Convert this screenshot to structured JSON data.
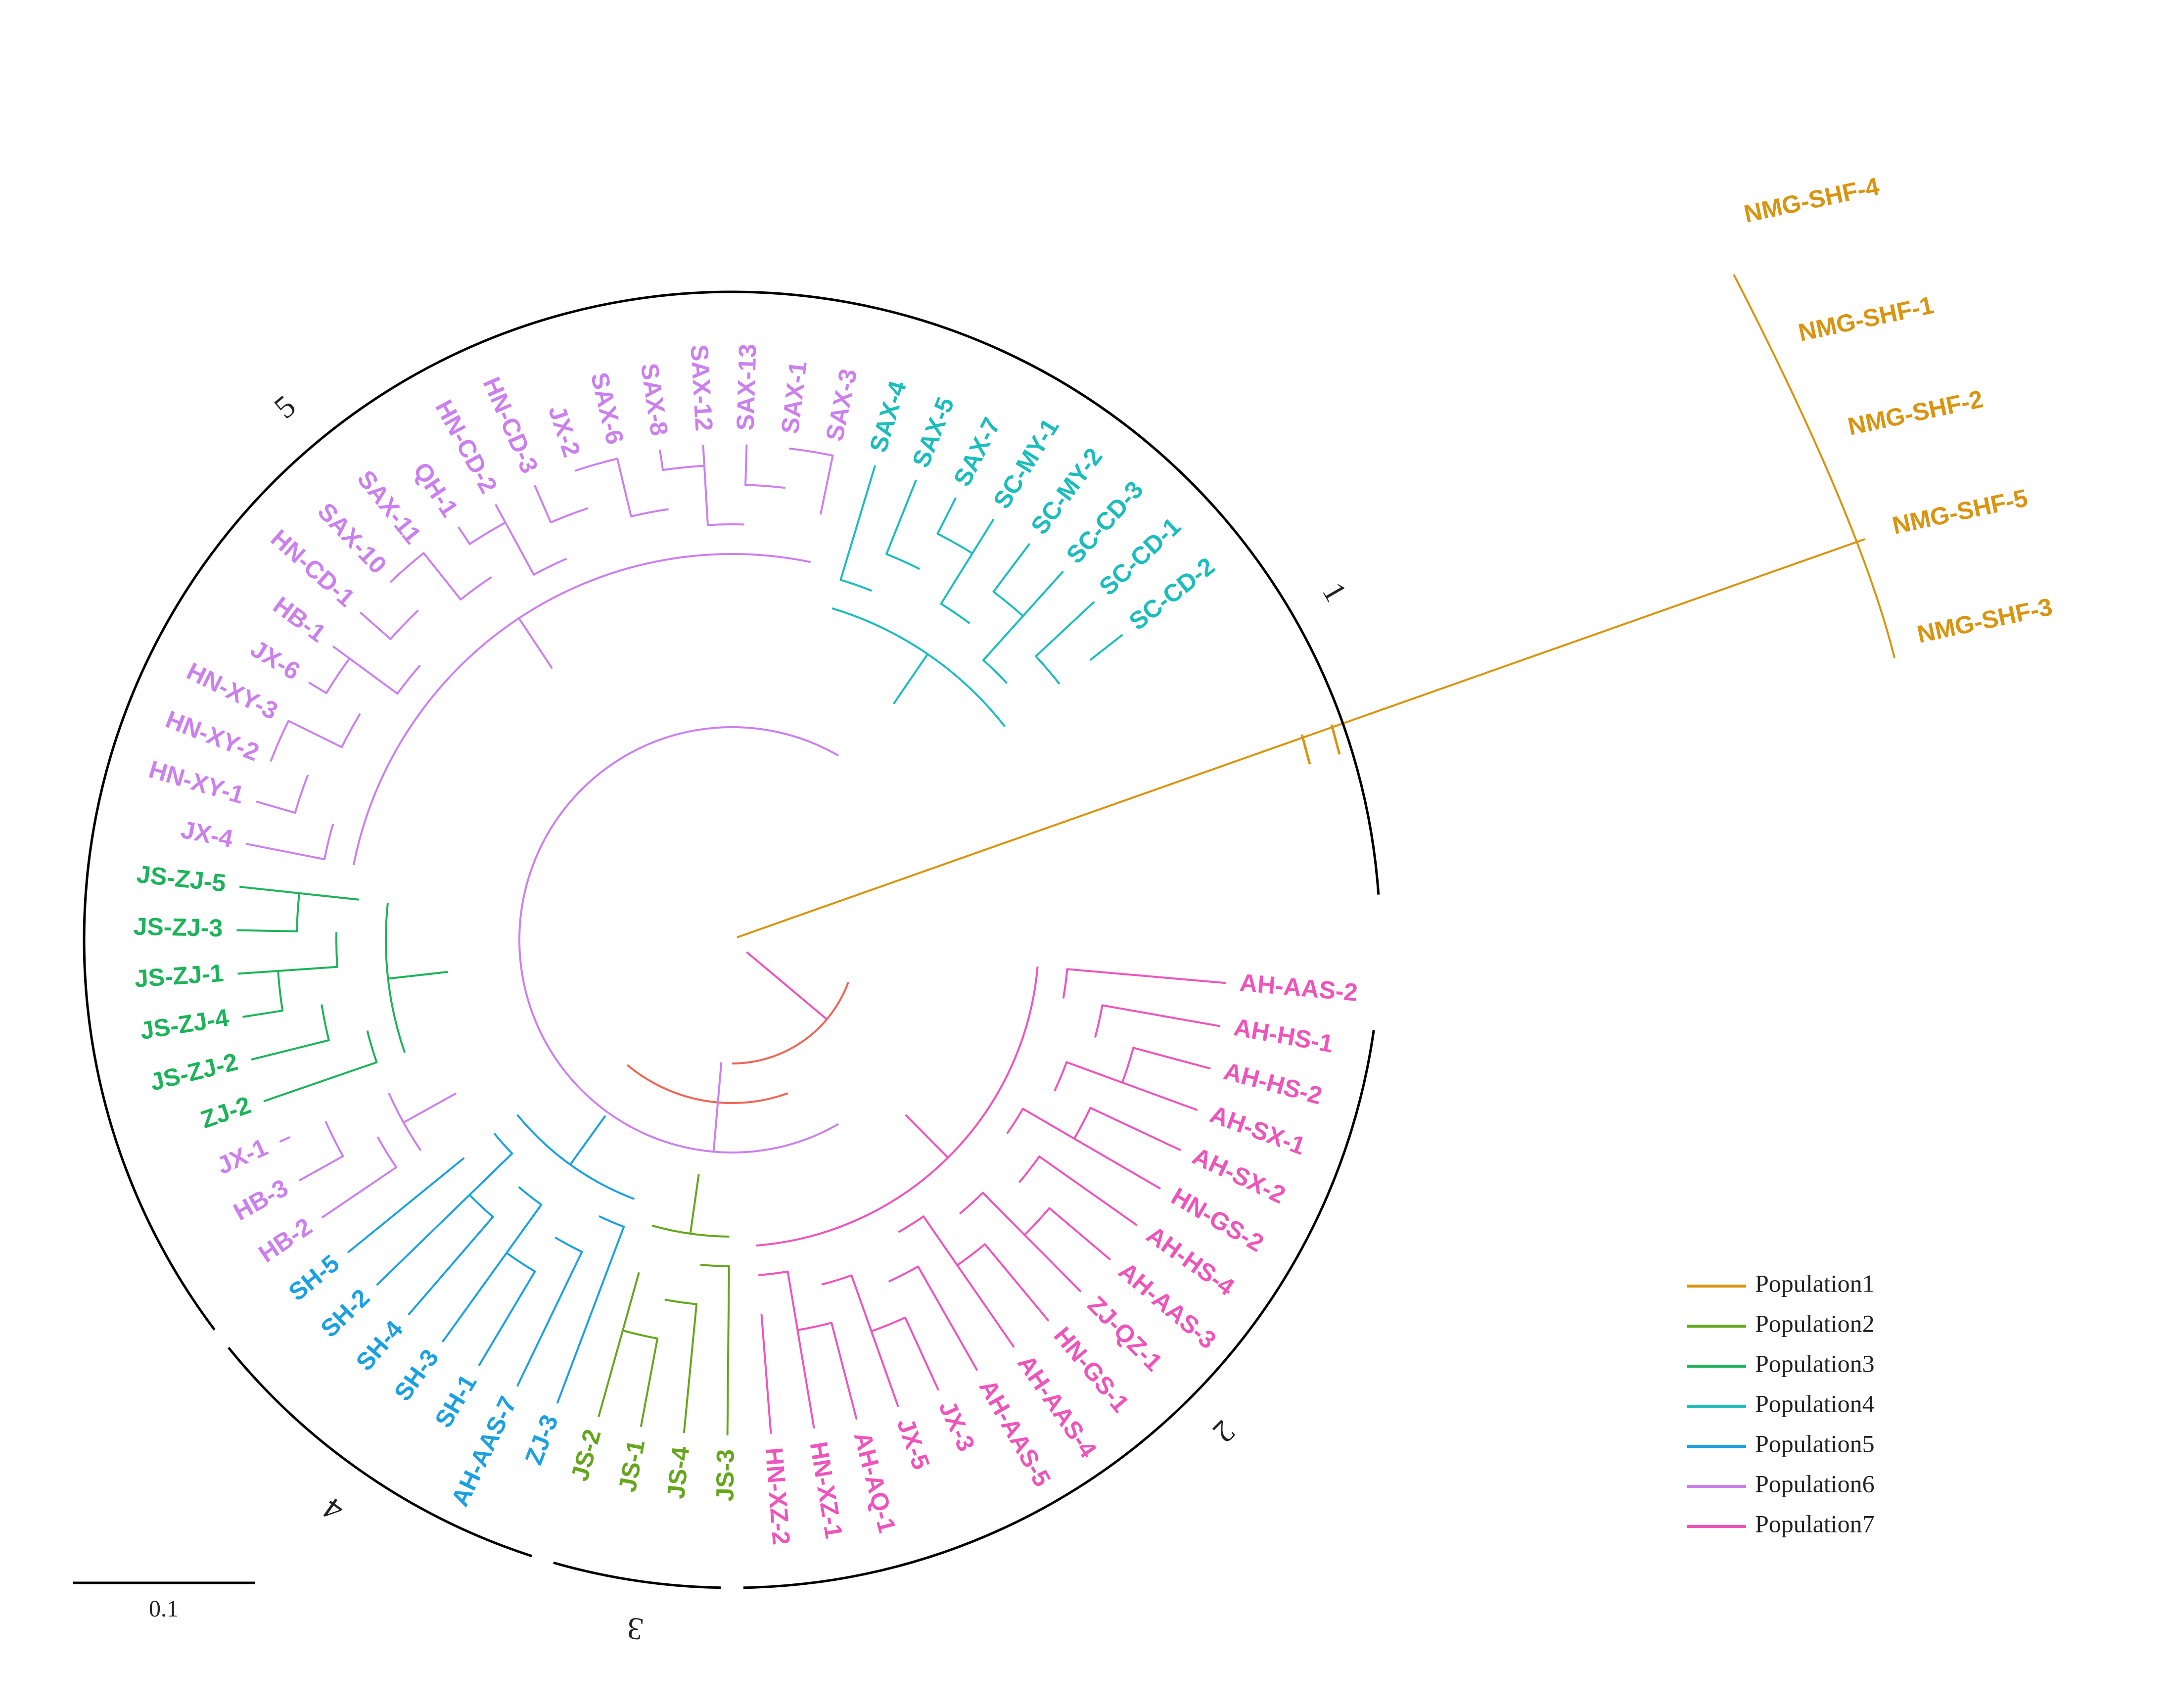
{
  "colors": {
    "Population1": "#d99410",
    "Population2": "#66a61e",
    "Population3": "#1db35b",
    "Population4": "#1bbdbd",
    "Population5": "#1ba1e2",
    "Population6": "#cc80ee",
    "Population7": "#ee55bb",
    "internal": "#ee6655",
    "arc": "#000000"
  },
  "legend": [
    {
      "label": "Population1",
      "key": "Population1"
    },
    {
      "label": "Population2",
      "key": "Population2"
    },
    {
      "label": "Population3",
      "key": "Population3"
    },
    {
      "label": "Population4",
      "key": "Population4"
    },
    {
      "label": "Population5",
      "key": "Population5"
    },
    {
      "label": "Population6",
      "key": "Population6"
    },
    {
      "label": "Population7",
      "key": "Population7"
    }
  ],
  "groups": [
    "1",
    "2",
    "3",
    "4",
    "5"
  ],
  "scale_label": "0.1",
  "clades": [
    {
      "pop": "Population1",
      "leaves": [
        "NMG-SHF-4",
        "NMG-SHF-1",
        "NMG-SHF-2",
        "NMG-SHF-5",
        "NMG-SHF-3"
      ]
    },
    {
      "pop": "Population7",
      "leaves": [
        "AH-AAS-2",
        "AH-HS-1",
        "AH-HS-2",
        "AH-SX-1",
        "AH-SX-2",
        "HN-GS-2",
        "AH-HS-4",
        "AH-AAS-3",
        "ZJ-QZ-1",
        "HN-GS-1",
        "AH-AAS-4",
        "AH-AAS-5",
        "JX-3",
        "JX-5",
        "AH-AQ-1",
        "HN-XZ-1",
        "HN-XZ-2"
      ]
    },
    {
      "pop": "Population2",
      "leaves": [
        "JS-3",
        "JS-4",
        "JS-1",
        "JS-2"
      ]
    },
    {
      "pop": "Population5",
      "leaves": [
        "ZJ-3",
        "AH-AAS-7",
        "SH-1",
        "SH-3",
        "SH-4",
        "SH-2",
        "SH-5"
      ]
    },
    {
      "pop": "Population6",
      "leaves": [
        "HB-2",
        "HB-3",
        "JX-1"
      ]
    },
    {
      "pop": "Population3",
      "leaves": [
        "ZJ-2",
        "JS-ZJ-2",
        "JS-ZJ-4",
        "JS-ZJ-1",
        "JS-ZJ-3",
        "JS-ZJ-5"
      ]
    },
    {
      "pop": "Population6",
      "leaves": [
        "JX-4",
        "HN-XY-1",
        "HN-XY-2",
        "HN-XY-3",
        "JX-6",
        "HB-1",
        "HN-CD-1",
        "SAX-10",
        "SAX-11",
        "QH-1",
        "HN-CD-2",
        "HN-CD-3",
        "JX-2",
        "SAX-6",
        "SAX-8",
        "SAX-12",
        "SAX-13",
        "SAX-1",
        "SAX-3"
      ]
    },
    {
      "pop": "Population4",
      "leaves": [
        "SAX-4",
        "SAX-5",
        "SAX-7",
        "SC-MY-1",
        "SC-MY-2",
        "SC-CD-3",
        "SC-CD-1",
        "SC-CD-2"
      ]
    }
  ]
}
